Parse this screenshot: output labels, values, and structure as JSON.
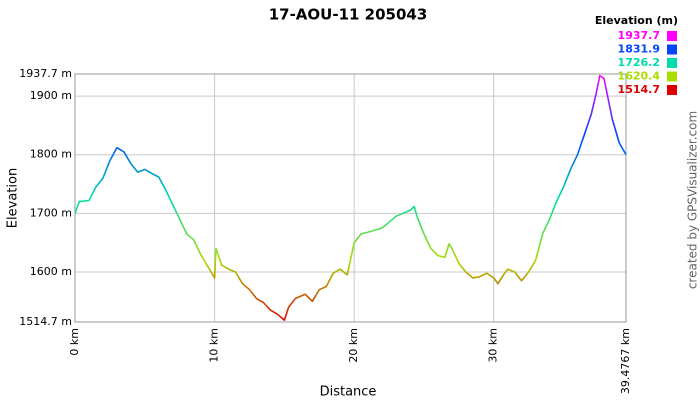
{
  "chart_data": {
    "type": "line",
    "title": "17-AOU-11 205043",
    "x_label": "Distance",
    "y_label": "Elevation",
    "credit": "created by GPSVisualizer.com",
    "xlim": [
      0,
      39.4767
    ],
    "ylim": [
      1514.7,
      1937.7
    ],
    "xticks": [
      {
        "value": 0,
        "label": "0 km"
      },
      {
        "value": 10,
        "label": "10 km"
      },
      {
        "value": 20,
        "label": "20 km"
      },
      {
        "value": 30,
        "label": "30 km"
      },
      {
        "value": 39.4767,
        "label": "39.4767 km"
      }
    ],
    "yticks": [
      {
        "value": 1514.7,
        "label": "1514.7 m"
      },
      {
        "value": 1600,
        "label": "1600 m"
      },
      {
        "value": 1700,
        "label": "1700 m"
      },
      {
        "value": 1800,
        "label": "1800 m"
      },
      {
        "value": 1900,
        "label": "1900 m"
      },
      {
        "value": 1937.7,
        "label": "1937.7 m"
      }
    ],
    "grid": true,
    "legend": {
      "title": "Elevation (m)",
      "position": "top-right",
      "entries": [
        {
          "value": 1937.7,
          "color": "#ff00ff"
        },
        {
          "value": 1831.9,
          "color": "#0044ff"
        },
        {
          "value": 1726.2,
          "color": "#00ddaa"
        },
        {
          "value": 1620.4,
          "color": "#aadd00"
        },
        {
          "value": 1514.7,
          "color": "#dd0000"
        }
      ]
    },
    "x": [
      0,
      0.3,
      1,
      1.5,
      2,
      2.5,
      3,
      3.5,
      4,
      4.5,
      5,
      5.5,
      6,
      6.5,
      7,
      7.5,
      8,
      8.5,
      9,
      9.5,
      10,
      10.1,
      10.5,
      11,
      11.5,
      12,
      12.5,
      13,
      13.5,
      14,
      14.5,
      15,
      15.3,
      15.8,
      16.5,
      17,
      17.5,
      18,
      18.5,
      19,
      19.5,
      20,
      20.5,
      21,
      22,
      22.5,
      23,
      24,
      24.3,
      24.5,
      25,
      25.5,
      26,
      26.5,
      26.8,
      27,
      27.5,
      28,
      28.5,
      29,
      29.5,
      30,
      30.3,
      30.7,
      31,
      31.5,
      32,
      32.5,
      33,
      33.5,
      34,
      34.5,
      35,
      35.5,
      36,
      36.5,
      37,
      37.3,
      37.6,
      37.9,
      38.2,
      38.5,
      39,
      39.4767
    ],
    "values": [
      1700,
      1720,
      1722,
      1745,
      1760,
      1790,
      1812,
      1805,
      1785,
      1770,
      1775,
      1768,
      1762,
      1740,
      1715,
      1690,
      1665,
      1655,
      1630,
      1610,
      1590,
      1640,
      1612,
      1605,
      1600,
      1580,
      1570,
      1555,
      1548,
      1535,
      1528,
      1518,
      1540,
      1555,
      1562,
      1550,
      1570,
      1575,
      1598,
      1605,
      1595,
      1650,
      1665,
      1668,
      1675,
      1685,
      1695,
      1705,
      1712,
      1695,
      1665,
      1640,
      1628,
      1625,
      1648,
      1640,
      1615,
      1600,
      1590,
      1592,
      1598,
      1590,
      1580,
      1595,
      1605,
      1600,
      1585,
      1600,
      1620,
      1665,
      1690,
      1720,
      1745,
      1775,
      1800,
      1835,
      1870,
      1900,
      1935,
      1930,
      1895,
      1860,
      1820,
      1800
    ]
  }
}
